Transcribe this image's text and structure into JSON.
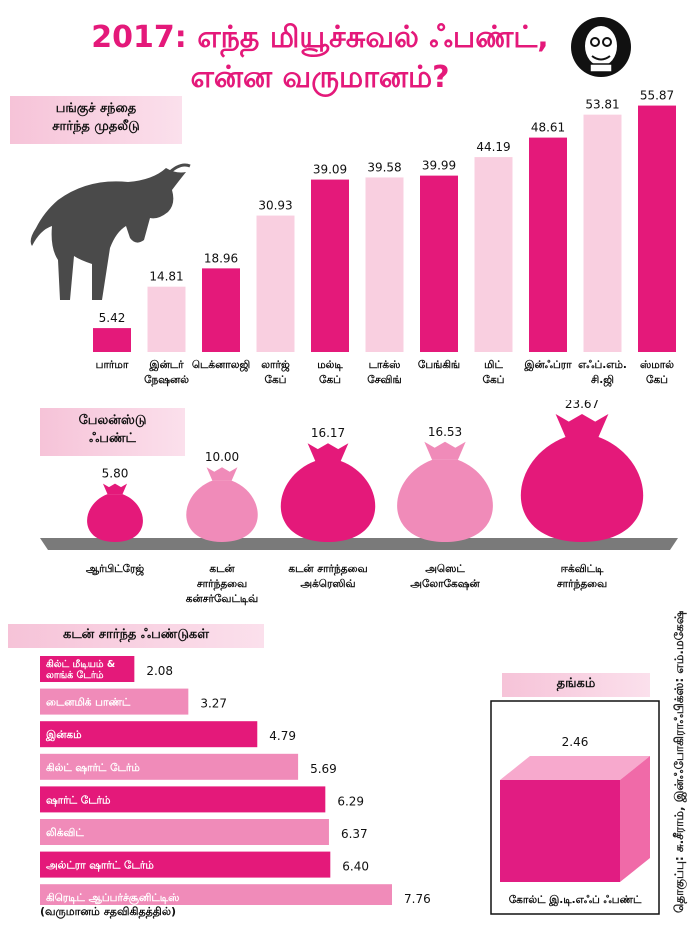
{
  "header": {
    "title_line1": "2017: எந்த மியூச்சுவல் ஃபண்ட்,",
    "title_line2": "என்ன வருமானம்?"
  },
  "colors": {
    "accent": "#e4197a",
    "light": "#f9cfe0",
    "medium": "#f08bb9",
    "cube": "#e11c82"
  },
  "sections": {
    "equity": "பங்குச் சந்தை\nசார்ந்த முதலீடு",
    "balanced": "பேலன்ஸ்டு\nஃபண்ட்",
    "debt": "கடன் சார்ந்த ஃபண்டுகள்",
    "gold": "தங்கம்"
  },
  "credit": "தொகுப்பு: சு.சீராம், இன்ஃபோகிராஃபிக்ஸ்: எம்.மகேஷ்",
  "unit_note": "(வருமானம் சதவிகிதத்தில்)",
  "chart_data": [
    {
      "type": "bar",
      "title": "பங்குச் சந்தை சார்ந்த முதலீடு",
      "categories": [
        "பார்மா",
        "இன்டர்நேஷனல்",
        "டெக்னாலஜி",
        "லார்ஜ் கேப்",
        "மல்டி கேப்",
        "டாக்ஸ் சேவிங்",
        "பேங்கிங்",
        "மிட் கேப்",
        "இன்ஃப்ரா",
        "எஃப்.எம்.சி.ஜி",
        "ஸ்மால் கேப்"
      ],
      "labels": [
        [
          "பார்மா"
        ],
        [
          "இன்டர்",
          "நேஷனல்"
        ],
        [
          "டெக்னாலஜி"
        ],
        [
          "லார்ஜ்",
          "கேப்"
        ],
        [
          "மல்டி",
          "கேப்"
        ],
        [
          "டாக்ஸ்",
          "சேவிங்"
        ],
        [
          "பேங்கிங்"
        ],
        [
          "மிட்",
          "கேப்"
        ],
        [
          "இன்ஃப்ரா"
        ],
        [
          "எஃப்.எம்.",
          "சி.ஜி"
        ],
        [
          "ஸ்மால்",
          "கேப்"
        ]
      ],
      "values": [
        5.42,
        14.81,
        18.96,
        30.93,
        39.09,
        39.58,
        39.99,
        44.19,
        48.61,
        53.81,
        55.87
      ],
      "value_labels": [
        "5.42",
        "14.81",
        "18.96",
        "30.93",
        "39.09",
        "39.58",
        "39.99",
        "44.19",
        "48.61",
        "53.81",
        "55.87"
      ],
      "shade": [
        "dark",
        "light",
        "dark",
        "light",
        "dark",
        "light",
        "dark",
        "light",
        "dark",
        "light",
        "dark"
      ],
      "ylim": [
        0,
        56
      ]
    },
    {
      "type": "bar",
      "title": "பேலன்ஸ்டு ஃபண்ட்",
      "categories": [
        "ஆர்பிட்ரேஜ்",
        "கடன் சார்ந்தவை கன்சர்வேட்டிவ்",
        "கடன் சார்ந்தவை அக்ரெஸிவ்",
        "அஸெட் அலோகேஷன்",
        "ஈக்விட்டி சார்ந்தவை"
      ],
      "labels": [
        [
          "ஆர்பிட்ரேஜ்"
        ],
        [
          "கடன்",
          "சார்ந்தவை",
          "கன்சர்வேட்டிவ்"
        ],
        [
          "கடன் சார்ந்தவை",
          "அக்ரெஸிவ்"
        ],
        [
          "அஸெட்",
          "அலோகேஷன்"
        ],
        [
          "ஈக்விட்டி",
          "சார்ந்தவை"
        ]
      ],
      "values": [
        5.8,
        10.0,
        16.17,
        16.53,
        23.67
      ],
      "value_labels": [
        "5.80",
        "10.00",
        "16.17",
        "16.53",
        "23.67"
      ],
      "shade": [
        "dark",
        "medium",
        "dark",
        "medium",
        "dark"
      ]
    },
    {
      "type": "bar",
      "orientation": "horizontal",
      "title": "கடன் சார்ந்த ஃபண்டுகள்",
      "categories": [
        "கில்ட் மீடியம் & லாங்க் டேர்ம்",
        "டைனமிக் பாண்ட்",
        "இன்கம்",
        "கில்ட் ஷார்ட் டேர்ம்",
        "ஷார்ட் டேர்ம்",
        "லிக்விட்",
        "அல்ட்ரா ஷார்ட் டேர்ம்",
        "கிரெடிட் ஆப்பர்ச்சூனிட்டிஸ்"
      ],
      "labels": [
        [
          "கில்ட் மீடியம் &",
          "லாங்க் டேர்ம்"
        ],
        [
          "டைனமிக் பாண்ட்"
        ],
        [
          "இன்கம்"
        ],
        [
          "கில்ட் ஷார்ட் டேர்ம்"
        ],
        [
          "ஷார்ட் டேர்ம்"
        ],
        [
          "லிக்விட்"
        ],
        [
          "அல்ட்ரா ஷார்ட் டேர்ம்"
        ],
        [
          "கிரெடிட் ஆப்பர்ச்சூனிட்டிஸ்"
        ]
      ],
      "values": [
        2.08,
        3.27,
        4.79,
        5.69,
        6.29,
        6.37,
        6.4,
        7.76
      ],
      "value_labels": [
        "2.08",
        "3.27",
        "4.79",
        "5.69",
        "6.29",
        "6.37",
        "6.40",
        "7.76"
      ],
      "shade": [
        "dark",
        "medium",
        "dark",
        "medium",
        "dark",
        "medium",
        "dark",
        "medium"
      ],
      "xlim": [
        0,
        7.76
      ]
    },
    {
      "type": "bar",
      "title": "தங்கம்",
      "categories": [
        "கோல்ட் இ.டி.எஃப் ஃபண்ட்"
      ],
      "values": [
        2.46
      ],
      "value_labels": [
        "2.46"
      ]
    }
  ]
}
